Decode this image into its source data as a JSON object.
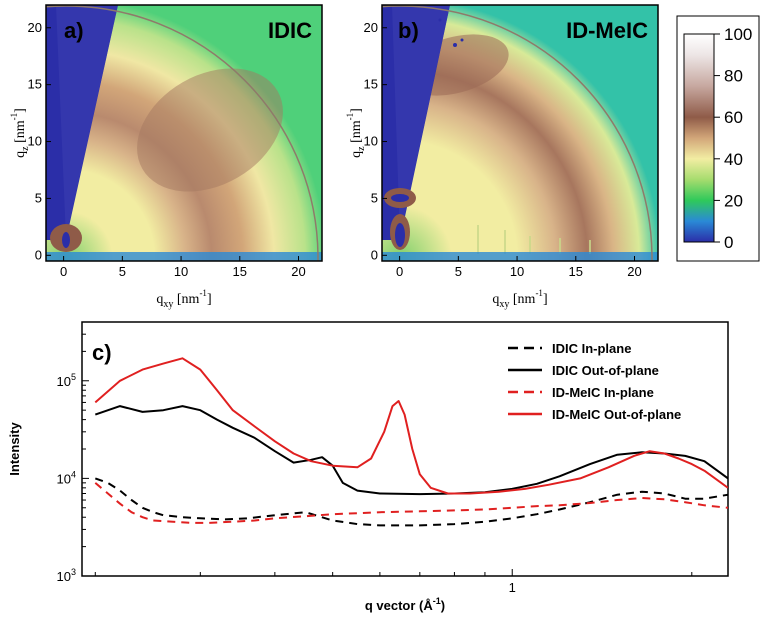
{
  "chart_data": [
    {
      "type": "heatmap",
      "panel_label": "a)",
      "title": "IDIC",
      "xlabel": "q",
      "xlabel_sub": "xy",
      "xlabel_unit": "[nm",
      "xlabel_unit_sup": "-1",
      "xlabel_unit_end": "]",
      "ylabel": "q",
      "ylabel_sub": "z",
      "ylabel_unit": "[nm",
      "ylabel_unit_sup": "-1",
      "ylabel_unit_end": "]",
      "xlim": [
        -1.5,
        22
      ],
      "ylim": [
        -0.5,
        22
      ],
      "xticks": [
        0,
        5,
        10,
        15,
        20
      ],
      "yticks": [
        0,
        5,
        10,
        15,
        20
      ],
      "features": [
        {
          "kind": "amorphous-halo",
          "q_center": 14,
          "intensity": 60
        },
        {
          "kind": "peak",
          "qxy": 0,
          "qz": 2.5,
          "intensity": 60
        }
      ]
    },
    {
      "type": "heatmap",
      "panel_label": "b)",
      "title": "ID-MeIC",
      "xlabel": "q",
      "xlabel_sub": "xy",
      "xlabel_unit": "[nm",
      "xlabel_unit_sup": "-1",
      "xlabel_unit_end": "]",
      "ylabel": "q",
      "ylabel_sub": "z",
      "ylabel_unit": "[nm",
      "ylabel_unit_sup": "-1",
      "ylabel_unit_end": "]",
      "xlim": [
        -1.5,
        22
      ],
      "ylim": [
        -0.5,
        22
      ],
      "xticks": [
        0,
        5,
        10,
        15,
        20
      ],
      "yticks": [
        0,
        5,
        10,
        15,
        20
      ],
      "features": [
        {
          "kind": "amorphous-halo",
          "q_center": 17,
          "intensity": 60
        },
        {
          "kind": "peak",
          "qxy": 0,
          "qz": 5,
          "intensity": 60
        },
        {
          "kind": "peak",
          "qxy": 0,
          "qz": 2,
          "intensity": 60
        }
      ]
    },
    {
      "type": "colorbar",
      "ticks": [
        0,
        20,
        40,
        60,
        80,
        100
      ],
      "range": [
        0,
        100
      ],
      "stops": [
        {
          "v": 0,
          "color": "#2b2ea8"
        },
        {
          "v": 10,
          "color": "#2a8ad6"
        },
        {
          "v": 20,
          "color": "#2fc95a"
        },
        {
          "v": 30,
          "color": "#a6dc6e"
        },
        {
          "v": 40,
          "color": "#f2eda2"
        },
        {
          "v": 50,
          "color": "#d2a679"
        },
        {
          "v": 60,
          "color": "#8f5b48"
        },
        {
          "v": 75,
          "color": "#c7a8a0"
        },
        {
          "v": 90,
          "color": "#ede6e6"
        },
        {
          "v": 100,
          "color": "#ffffff"
        }
      ]
    },
    {
      "type": "line",
      "panel_label": "c)",
      "xlabel": "q vector (Å",
      "xlabel_sup": "-1",
      "xlabel_end": ")",
      "ylabel": "Intensity",
      "xscale": "log",
      "yscale": "log",
      "xlim": [
        0.19,
        2.3
      ],
      "ylim": [
        1000,
        400000
      ],
      "xticks": [
        1
      ],
      "xtick_labels": [
        "1"
      ],
      "yticks": [
        1000,
        10000,
        100000
      ],
      "ytick_base": "10",
      "ytick_exps": [
        "3",
        "4",
        "5"
      ],
      "legend_position": "top-right",
      "series": [
        {
          "name": "IDIC In-plane",
          "color": "#000000",
          "dash": "8,6",
          "x": [
            0.2,
            0.21,
            0.22,
            0.23,
            0.24,
            0.25,
            0.26,
            0.28,
            0.3,
            0.33,
            0.36,
            0.4,
            0.45,
            0.5,
            0.55,
            0.6,
            0.7,
            0.8,
            0.9,
            1.0,
            1.1,
            1.2,
            1.35,
            1.5,
            1.65,
            1.8,
            1.95,
            2.1,
            2.3
          ],
          "y": [
            10000,
            9000,
            7500,
            6000,
            5000,
            4500,
            4200,
            4000,
            3900,
            3800,
            3900,
            4200,
            4500,
            3700,
            3400,
            3300,
            3300,
            3400,
            3600,
            3900,
            4300,
            4800,
            5700,
            6800,
            7300,
            7000,
            6200,
            6200,
            6800
          ]
        },
        {
          "name": "IDIC Out-of-plane",
          "color": "#000000",
          "dash": "",
          "x": [
            0.2,
            0.22,
            0.24,
            0.26,
            0.28,
            0.3,
            0.32,
            0.34,
            0.37,
            0.4,
            0.43,
            0.46,
            0.48,
            0.5,
            0.52,
            0.55,
            0.6,
            0.7,
            0.8,
            0.9,
            1.0,
            1.1,
            1.2,
            1.35,
            1.5,
            1.65,
            1.8,
            1.95,
            2.1,
            2.3
          ],
          "y": [
            45000,
            55000,
            48000,
            50000,
            55000,
            50000,
            40000,
            33000,
            26000,
            19000,
            14500,
            15500,
            16500,
            13500,
            9000,
            7500,
            7000,
            6900,
            7000,
            7200,
            7800,
            8800,
            10500,
            14000,
            17500,
            18500,
            18000,
            17000,
            15000,
            10000
          ]
        },
        {
          "name": "ID-MeIC In-plane",
          "color": "#e02020",
          "dash": "8,6",
          "x": [
            0.2,
            0.21,
            0.22,
            0.23,
            0.24,
            0.25,
            0.27,
            0.29,
            0.31,
            0.34,
            0.37,
            0.4,
            0.45,
            0.5,
            0.55,
            0.6,
            0.7,
            0.8,
            0.9,
            1.0,
            1.1,
            1.2,
            1.35,
            1.5,
            1.65,
            1.8,
            1.95,
            2.1,
            2.3
          ],
          "y": [
            9000,
            7000,
            5500,
            4500,
            4000,
            3700,
            3600,
            3500,
            3500,
            3600,
            3700,
            3900,
            4100,
            4300,
            4400,
            4500,
            4600,
            4700,
            4800,
            5000,
            5200,
            5300,
            5600,
            6000,
            6300,
            6100,
            5700,
            5300,
            5000
          ]
        },
        {
          "name": "ID-MeIC Out-of-plane",
          "color": "#e02020",
          "dash": "",
          "x": [
            0.2,
            0.22,
            0.24,
            0.26,
            0.28,
            0.3,
            0.32,
            0.34,
            0.37,
            0.4,
            0.43,
            0.46,
            0.5,
            0.55,
            0.58,
            0.61,
            0.63,
            0.645,
            0.66,
            0.68,
            0.7,
            0.73,
            0.78,
            0.85,
            0.95,
            1.05,
            1.15,
            1.3,
            1.45,
            1.6,
            1.7,
            1.8,
            1.9,
            2.0,
            2.1,
            2.3
          ],
          "y": [
            60000,
            100000,
            130000,
            150000,
            170000,
            130000,
            80000,
            50000,
            34000,
            24000,
            18000,
            15000,
            13500,
            13000,
            16000,
            30000,
            55000,
            62000,
            45000,
            20000,
            11000,
            8000,
            7000,
            7000,
            7300,
            7800,
            8600,
            10000,
            13000,
            17000,
            19000,
            18000,
            16000,
            14000,
            12000,
            8000
          ]
        }
      ]
    }
  ]
}
